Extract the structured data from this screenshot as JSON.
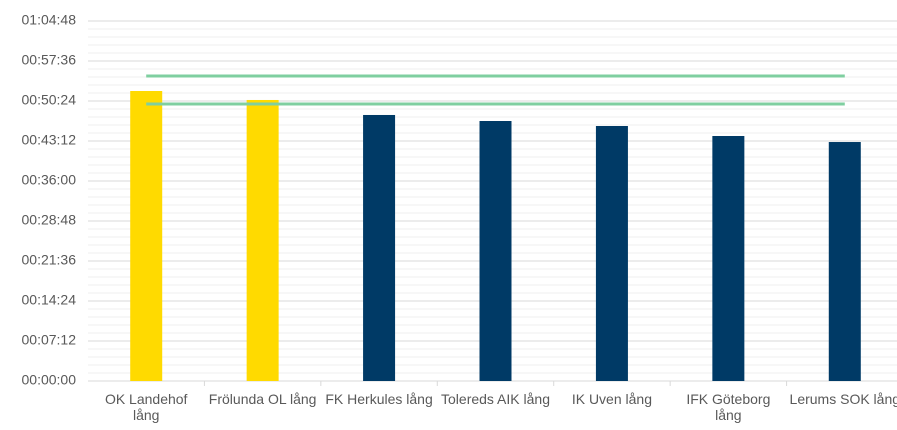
{
  "chart_data": {
    "type": "bar",
    "categories": [
      "OK Landehof lång",
      "Frölunda OL lång",
      "FK Herkules lång",
      "Tolereds AIK lång",
      "IK Uven lång",
      "IFK Göteborg lång",
      "Lerums SOK lång"
    ],
    "values": [
      3132,
      3035,
      2873,
      2808,
      2754,
      2646,
      2581
    ],
    "colors": [
      "#ffda00",
      "#ffda00",
      "#003a66",
      "#003a66",
      "#003a66",
      "#003a66",
      "#003a66"
    ],
    "reference_lines": {
      "color": "#7fcfa0",
      "values": [
        3294,
        2992
      ]
    },
    "ylim": [
      0,
      3888
    ],
    "yticks": [
      {
        "value": 0,
        "label": "00:00:00"
      },
      {
        "value": 432,
        "label": "00:07:12"
      },
      {
        "value": 864,
        "label": "00:14:24"
      },
      {
        "value": 1296,
        "label": "00:21:36"
      },
      {
        "value": 1728,
        "label": "00:28:48"
      },
      {
        "value": 2160,
        "label": "00:36:00"
      },
      {
        "value": 2592,
        "label": "00:43:12"
      },
      {
        "value": 3024,
        "label": "00:50:24"
      },
      {
        "value": 3456,
        "label": "00:57:36"
      },
      {
        "value": 3888,
        "label": "01:04:48"
      }
    ],
    "grid": true,
    "minor_grid": true
  }
}
